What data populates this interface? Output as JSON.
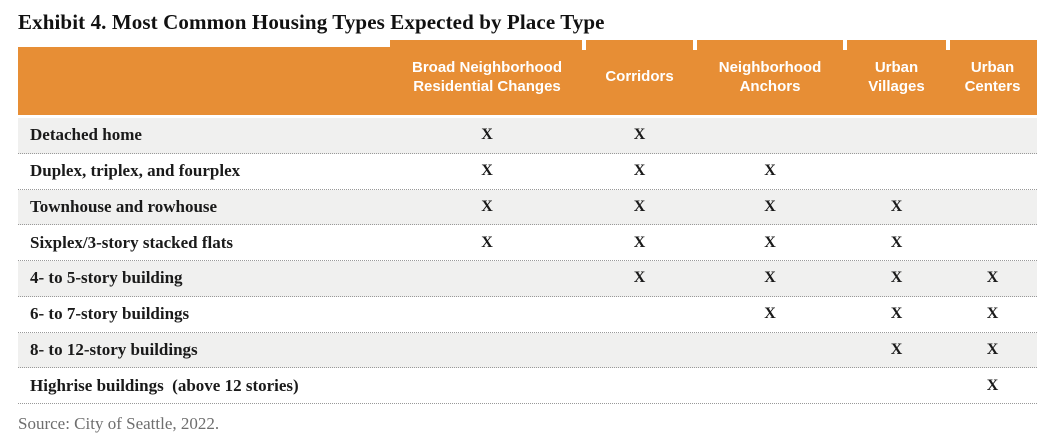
{
  "title": "Exhibit 4. Most Common Housing Types Expected by Place Type",
  "source": "Source: City of Seattle, 2022.",
  "table": {
    "columns": [
      "Broad Neighborhood Residential Changes",
      "Corridors",
      "Neighborhood Anchors",
      "Urban Villages",
      "Urban Centers"
    ],
    "mark_glyph": "X",
    "rows": [
      {
        "label": "Detached home",
        "cells": [
          "X",
          "X",
          "",
          "",
          ""
        ]
      },
      {
        "label": "Duplex, triplex, and fourplex",
        "cells": [
          "X",
          "X",
          "X",
          "",
          ""
        ]
      },
      {
        "label": "Townhouse and rowhouse",
        "cells": [
          "X",
          "X",
          "X",
          "X",
          ""
        ]
      },
      {
        "label": "Sixplex/3-story stacked flats",
        "cells": [
          "X",
          "X",
          "X",
          "X",
          ""
        ]
      },
      {
        "label": "4- to 5-story building",
        "cells": [
          "",
          "X",
          "X",
          "X",
          "X"
        ]
      },
      {
        "label": "6- to 7-story buildings",
        "cells": [
          "",
          "",
          "X",
          "X",
          "X"
        ]
      },
      {
        "label": "8- to 12-story buildings",
        "cells": [
          "",
          "",
          "",
          "X",
          "X"
        ]
      },
      {
        "label": "Highrise buildings  (above 12 stories)",
        "cells": [
          "",
          "",
          "",
          "",
          "X"
        ]
      }
    ]
  },
  "colors": {
    "header_bg": "#E78E35",
    "header_text": "#FFFFFF",
    "row_alt_bg": "#F0F0EF",
    "dotted_line": "#999999",
    "title_color": "#111111",
    "label_color": "#1A1A1A",
    "source_color": "#6E6E6E",
    "page_bg": "#FFFFFF"
  }
}
